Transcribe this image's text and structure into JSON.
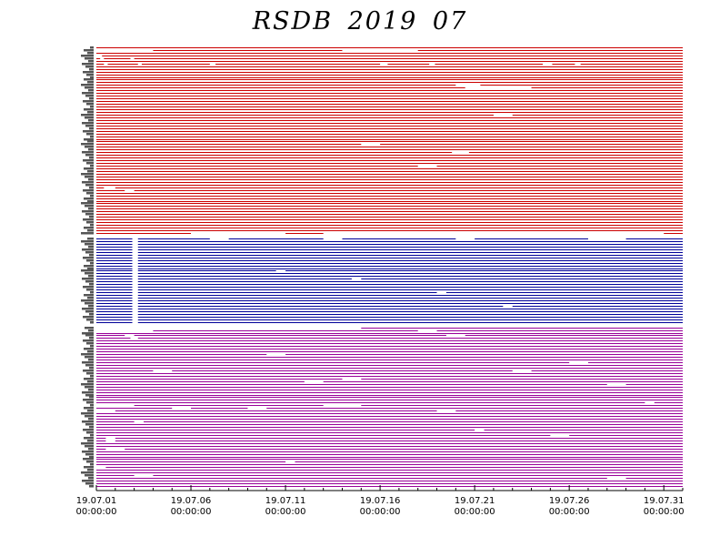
{
  "chart_data": {
    "type": "timeline",
    "title": "RSDB  2019  07",
    "x_ticks": [
      {
        "date": "19.07.01",
        "time": "00:00:00"
      },
      {
        "date": "19.07.06",
        "time": "00:00:00"
      },
      {
        "date": "19.07.11",
        "time": "00:00:00"
      },
      {
        "date": "19.07.16",
        "time": "00:00:00"
      },
      {
        "date": "19.07.21",
        "time": "00:00:00"
      },
      {
        "date": "19.07.26",
        "time": "00:00:00"
      },
      {
        "date": "19.07.31",
        "time": "00:00:00"
      }
    ],
    "xlim": [
      "2019-07-01",
      "2019-07-32"
    ],
    "grid": false,
    "legend": "none",
    "groups": [
      {
        "color": "#cc0000",
        "stations": 70,
        "gaps": [
          {
            "station": 1,
            "start": 1.0,
            "end": 4.0
          },
          {
            "station": 1,
            "start": 14.0,
            "end": 18.0
          },
          {
            "station": 3,
            "start": 1.0,
            "end": 1.3
          },
          {
            "station": 4,
            "start": 1.2,
            "end": 1.4
          },
          {
            "station": 4,
            "start": 2.8,
            "end": 3.0
          },
          {
            "station": 6,
            "start": 1.4,
            "end": 1.6
          },
          {
            "station": 6,
            "start": 3.2,
            "end": 3.4
          },
          {
            "station": 6,
            "start": 7.0,
            "end": 7.3
          },
          {
            "station": 6,
            "start": 16.0,
            "end": 16.4
          },
          {
            "station": 6,
            "start": 18.6,
            "end": 18.9
          },
          {
            "station": 6,
            "start": 24.6,
            "end": 25.1
          },
          {
            "station": 6,
            "start": 26.3,
            "end": 26.6
          },
          {
            "station": 14,
            "start": 20.0,
            "end": 21.3
          },
          {
            "station": 15,
            "start": 20.5,
            "end": 24.0
          },
          {
            "station": 25,
            "start": 22.0,
            "end": 23.0
          },
          {
            "station": 36,
            "start": 15.0,
            "end": 16.0
          },
          {
            "station": 39,
            "start": 19.8,
            "end": 20.7
          },
          {
            "station": 44,
            "start": 18.0,
            "end": 19.0
          },
          {
            "station": 52,
            "start": 1.4,
            "end": 2.0
          },
          {
            "station": 53,
            "start": 2.5,
            "end": 3.0
          },
          {
            "station": 69,
            "start": 6.0,
            "end": 11.0
          },
          {
            "station": 69,
            "start": 13.0,
            "end": 31.0
          }
        ]
      },
      {
        "color": "#000099",
        "stations": 32,
        "gaps": [
          {
            "station": 0,
            "start": 2.9,
            "end": 3.2
          },
          {
            "station": 1,
            "start": 2.9,
            "end": 3.2
          },
          {
            "station": 2,
            "start": 2.9,
            "end": 3.2
          },
          {
            "station": 3,
            "start": 2.9,
            "end": 3.2
          },
          {
            "station": 4,
            "start": 2.9,
            "end": 3.2
          },
          {
            "station": 5,
            "start": 2.9,
            "end": 3.2
          },
          {
            "station": 6,
            "start": 2.9,
            "end": 3.2
          },
          {
            "station": 7,
            "start": 2.9,
            "end": 3.2
          },
          {
            "station": 8,
            "start": 2.9,
            "end": 3.2
          },
          {
            "station": 9,
            "start": 2.9,
            "end": 3.2
          },
          {
            "station": 10,
            "start": 2.9,
            "end": 3.2
          },
          {
            "station": 11,
            "start": 2.9,
            "end": 3.2
          },
          {
            "station": 12,
            "start": 2.9,
            "end": 3.2
          },
          {
            "station": 13,
            "start": 2.9,
            "end": 3.2
          },
          {
            "station": 14,
            "start": 2.9,
            "end": 3.2
          },
          {
            "station": 15,
            "start": 2.9,
            "end": 3.2
          },
          {
            "station": 16,
            "start": 2.9,
            "end": 3.2
          },
          {
            "station": 17,
            "start": 2.9,
            "end": 3.2
          },
          {
            "station": 18,
            "start": 2.9,
            "end": 3.2
          },
          {
            "station": 19,
            "start": 2.9,
            "end": 3.2
          },
          {
            "station": 20,
            "start": 2.9,
            "end": 3.2
          },
          {
            "station": 21,
            "start": 2.9,
            "end": 3.2
          },
          {
            "station": 22,
            "start": 2.9,
            "end": 3.2
          },
          {
            "station": 23,
            "start": 2.9,
            "end": 3.2
          },
          {
            "station": 24,
            "start": 2.9,
            "end": 3.2
          },
          {
            "station": 25,
            "start": 2.9,
            "end": 3.2
          },
          {
            "station": 26,
            "start": 2.9,
            "end": 3.2
          },
          {
            "station": 27,
            "start": 2.9,
            "end": 3.2
          },
          {
            "station": 28,
            "start": 2.9,
            "end": 3.2
          },
          {
            "station": 29,
            "start": 2.9,
            "end": 3.2
          },
          {
            "station": 30,
            "start": 2.9,
            "end": 3.2
          },
          {
            "station": 31,
            "start": 2.9,
            "end": 3.2
          },
          {
            "station": 0,
            "start": 7.0,
            "end": 8.0
          },
          {
            "station": 0,
            "start": 13.0,
            "end": 14.0
          },
          {
            "station": 0,
            "start": 20.0,
            "end": 21.0
          },
          {
            "station": 0,
            "start": 27.0,
            "end": 29.0
          },
          {
            "station": 12,
            "start": 10.5,
            "end": 11.0
          },
          {
            "station": 15,
            "start": 14.5,
            "end": 15.0
          },
          {
            "station": 20,
            "start": 19.0,
            "end": 19.5
          },
          {
            "station": 25,
            "start": 22.5,
            "end": 23.0
          }
        ]
      },
      {
        "color": "#990099",
        "stations": 60,
        "gaps": [
          {
            "station": 0,
            "start": 1.0,
            "end": 15.0
          },
          {
            "station": 1,
            "start": 1.0,
            "end": 4.0
          },
          {
            "station": 1,
            "start": 18.0,
            "end": 19.0
          },
          {
            "station": 3,
            "start": 2.5,
            "end": 3.0
          },
          {
            "station": 3,
            "start": 19.5,
            "end": 20.5
          },
          {
            "station": 4,
            "start": 2.8,
            "end": 3.2
          },
          {
            "station": 10,
            "start": 10.0,
            "end": 11.0
          },
          {
            "station": 13,
            "start": 26.0,
            "end": 27.0
          },
          {
            "station": 16,
            "start": 4.0,
            "end": 5.0
          },
          {
            "station": 16,
            "start": 23.0,
            "end": 24.0
          },
          {
            "station": 19,
            "start": 14.0,
            "end": 15.0
          },
          {
            "station": 20,
            "start": 12.0,
            "end": 13.0
          },
          {
            "station": 21,
            "start": 28.0,
            "end": 29.0
          },
          {
            "station": 28,
            "start": 30.0,
            "end": 30.5
          },
          {
            "station": 29,
            "start": 1.0,
            "end": 3.0
          },
          {
            "station": 29,
            "start": 13.0,
            "end": 15.0
          },
          {
            "station": 30,
            "start": 5.0,
            "end": 6.0
          },
          {
            "station": 30,
            "start": 9.0,
            "end": 10.0
          },
          {
            "station": 31,
            "start": 1.0,
            "end": 2.0
          },
          {
            "station": 31,
            "start": 19.0,
            "end": 20.0
          },
          {
            "station": 35,
            "start": 3.0,
            "end": 3.5
          },
          {
            "station": 38,
            "start": 21.0,
            "end": 21.5
          },
          {
            "station": 40,
            "start": 25.0,
            "end": 26.0
          },
          {
            "station": 41,
            "start": 1.5,
            "end": 2.0
          },
          {
            "station": 42,
            "start": 1.5,
            "end": 2.0
          },
          {
            "station": 45,
            "start": 1.5,
            "end": 2.5
          },
          {
            "station": 50,
            "start": 11.0,
            "end": 11.5
          },
          {
            "station": 52,
            "start": 1.0,
            "end": 1.5
          },
          {
            "station": 55,
            "start": 3.0,
            "end": 4.0
          },
          {
            "station": 56,
            "start": 28.0,
            "end": 29.0
          }
        ]
      }
    ]
  }
}
